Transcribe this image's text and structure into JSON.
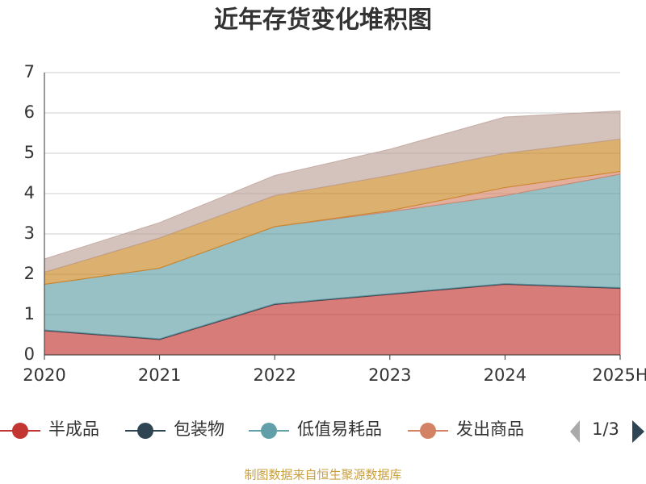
{
  "chart_data": {
    "type": "stacked_area",
    "title": "近年存货变化堆积图",
    "categories": [
      "2020",
      "2021",
      "2022",
      "2023",
      "2024",
      "2025H"
    ],
    "series": [
      {
        "name": "半成品",
        "color": "#c23531",
        "values": [
          0.6,
          0.38,
          1.25,
          1.5,
          1.75,
          1.65
        ]
      },
      {
        "name": "包装物",
        "color": "#2f4554",
        "values": [
          0.02,
          0.02,
          0.02,
          0.02,
          0.02,
          0.02
        ]
      },
      {
        "name": "低值易耗品",
        "color": "#61a0a8",
        "values": [
          1.13,
          1.75,
          1.91,
          2.03,
          2.18,
          2.81
        ]
      },
      {
        "name": "发出商品",
        "color": "#d48265",
        "values": [
          0,
          0,
          0,
          0.03,
          0.2,
          0.07
        ]
      },
      {
        "color": "#ca8622",
        "values": [
          0.3,
          0.75,
          0.77,
          0.87,
          0.85,
          0.8
        ]
      },
      {
        "color": "#bda29a",
        "values": [
          0.33,
          0.38,
          0.5,
          0.65,
          0.9,
          0.7
        ]
      }
    ],
    "ylim": [
      0,
      7
    ],
    "yticks": [
      0,
      1,
      2,
      3,
      4,
      5,
      6,
      7
    ],
    "grid": true,
    "legend_page": "1/3",
    "source": "制图数据来自恒生聚源数据库"
  }
}
